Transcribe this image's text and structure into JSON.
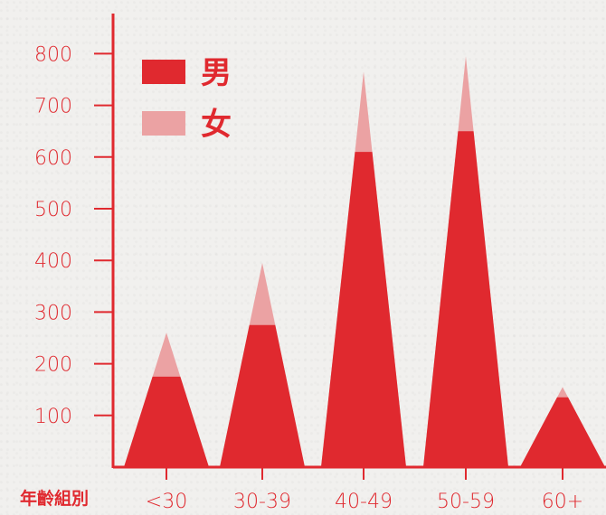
{
  "chart_data": {
    "type": "bar",
    "style": "stacked-triangle",
    "xlabel": "年齡組別",
    "ylabel": "",
    "categories": [
      "<30",
      "30-39",
      "40-49",
      "50-59",
      "60+"
    ],
    "series": [
      {
        "name": "男",
        "values": [
          175,
          275,
          610,
          650,
          135
        ],
        "color": "#e0292f"
      },
      {
        "name": "女",
        "values": [
          85,
          120,
          155,
          145,
          20
        ],
        "color": "#eba2a3"
      }
    ],
    "y_ticks": [
      100,
      200,
      300,
      400,
      500,
      600,
      700,
      800
    ],
    "ylim": [
      0,
      900
    ],
    "grid": false,
    "legend_position": "top-left"
  }
}
